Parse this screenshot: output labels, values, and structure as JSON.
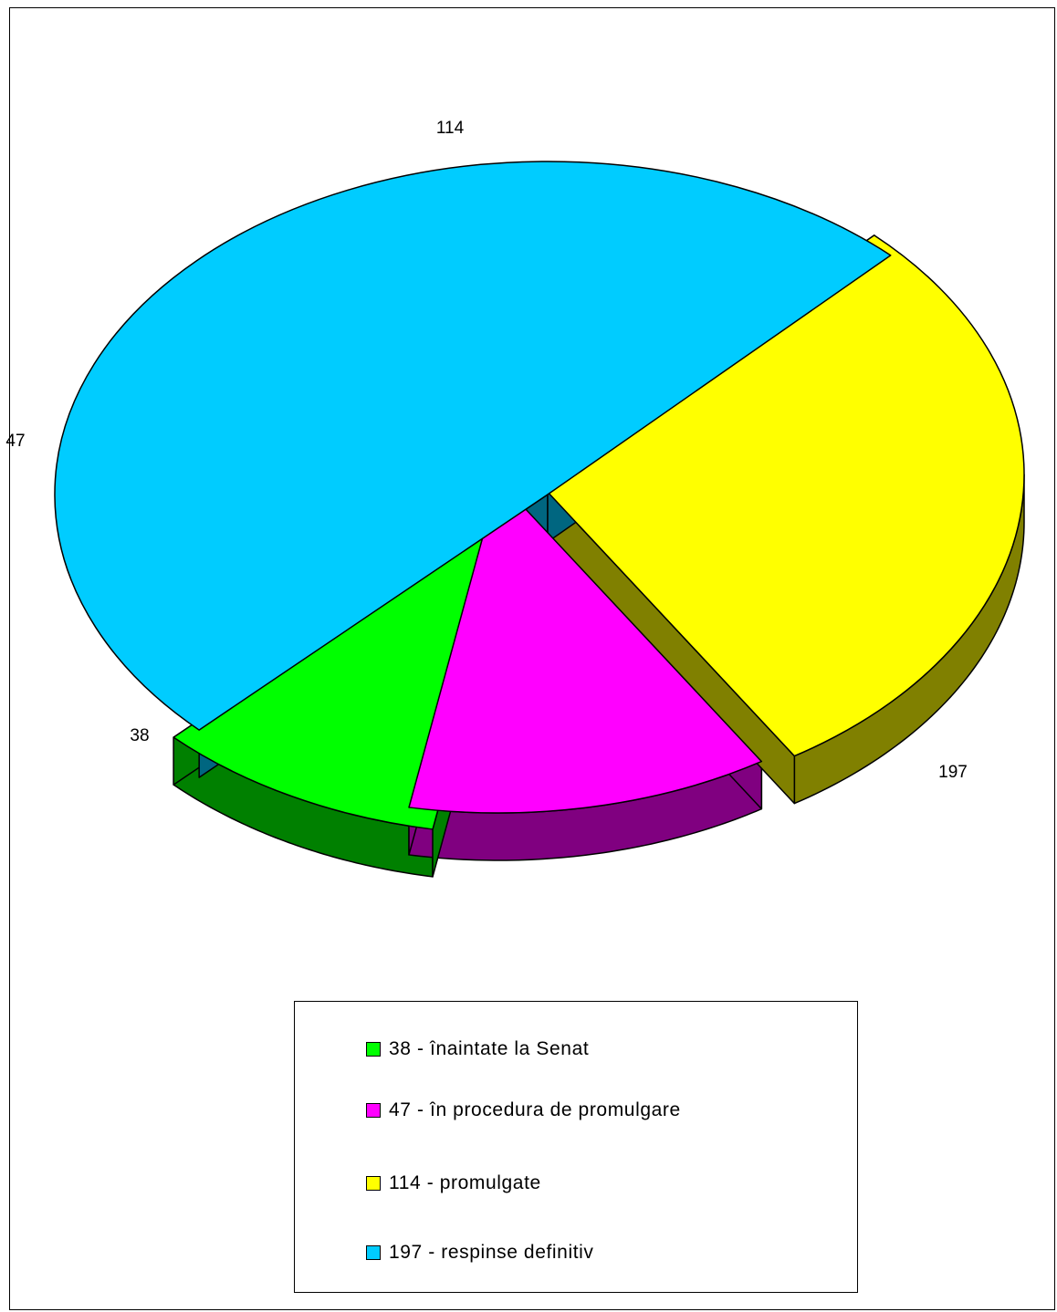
{
  "chart_data": {
    "type": "pie",
    "title": "",
    "three_d": true,
    "exploded": true,
    "slices": [
      {
        "label": "38 - înaintate la Senat",
        "value": 38,
        "data_label": "38",
        "color": "#00FF00",
        "side_color": "#008000"
      },
      {
        "label": "47 - în procedura de promulgare",
        "value": 47,
        "data_label": "47",
        "color": "#FF00FF",
        "side_color": "#800080"
      },
      {
        "label": "114 - promulgate",
        "value": 114,
        "data_label": "114",
        "color": "#FFFF00",
        "side_color": "#808000"
      },
      {
        "label": "197 - respinse definitiv",
        "value": 197,
        "data_label": "197",
        "color": "#00CCFF",
        "side_color": "#006680"
      }
    ],
    "legend": {
      "position": "bottom"
    }
  }
}
